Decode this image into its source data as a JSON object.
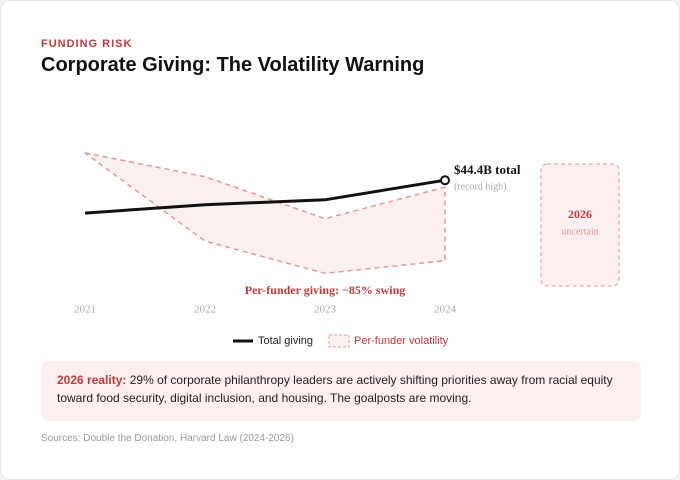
{
  "header": {
    "kicker": "FUNDING RISK",
    "title": "Corporate Giving: The Volatility Warning"
  },
  "chart_data": {
    "type": "line",
    "categories": [
      "2021",
      "2022",
      "2023",
      "2024"
    ],
    "series": [
      {
        "name": "Total giving",
        "color": "#111111",
        "values": [
          39.7,
          40.9,
          41.6,
          44.4
        ]
      }
    ],
    "band": {
      "name": "Per-funder volatility",
      "color": "#e39a9a",
      "high": [
        48.3,
        44.9,
        38.9,
        43.4
      ],
      "low": [
        48.3,
        35.7,
        31.1,
        32.9
      ]
    },
    "ylim": [
      30,
      50
    ],
    "annotations": {
      "end_label": "$44.4B total",
      "end_note": "(record high)",
      "swing": "Per-funder giving: −85% swing"
    },
    "future": {
      "label": "2026",
      "note": "uncertain"
    }
  },
  "callout": {
    "lead": "2026 reality:",
    "text": "29% of corporate philanthropy leaders are actively shifting priorities away from racial equity toward food security, digital inclusion, and housing. The goalposts are moving."
  },
  "footer": {
    "sources": "Sources: Double the Donation, Harvard Law (2024-2026)"
  }
}
